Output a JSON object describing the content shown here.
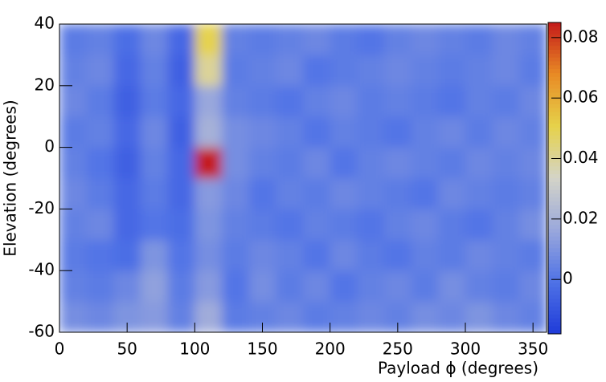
{
  "chart_data": {
    "type": "heatmap",
    "x_label": "Payload ϕ (degrees)",
    "y_label": "Elevation (degrees)",
    "xbins": [
      0,
      20,
      40,
      60,
      80,
      100,
      120,
      140,
      160,
      180,
      200,
      220,
      240,
      260,
      280,
      300,
      320,
      340,
      360
    ],
    "ybins": [
      -60,
      -50,
      -40,
      -30,
      -20,
      -10,
      0,
      10,
      20,
      30,
      40
    ],
    "z": [
      [
        0.008,
        0.006,
        0.01,
        0.012,
        0.004,
        0.018,
        0.002,
        0.004,
        0.006,
        0.002,
        0.004,
        0.006,
        0.004,
        0.008,
        0.006,
        0.01,
        0.006,
        0.004
      ],
      [
        0.004,
        0.002,
        0.006,
        0.014,
        0.002,
        0.012,
        0.0,
        0.008,
        0.002,
        0.006,
        0.0,
        0.004,
        0.006,
        0.002,
        0.008,
        0.004,
        0.002,
        0.006
      ],
      [
        0.002,
        0.0,
        -0.002,
        0.01,
        0.0,
        0.008,
        0.002,
        0.006,
        0.004,
        0.0,
        0.006,
        0.002,
        0.0,
        0.004,
        0.002,
        0.006,
        0.004,
        0.002
      ],
      [
        0.004,
        0.006,
        -0.004,
        0.0,
        -0.002,
        0.01,
        0.004,
        0.002,
        0.0,
        0.004,
        0.002,
        0.0,
        0.004,
        0.006,
        0.002,
        0.0,
        0.004,
        0.008
      ],
      [
        0.006,
        0.002,
        -0.004,
        0.002,
        -0.004,
        0.012,
        0.006,
        0.0,
        0.004,
        0.002,
        0.006,
        0.004,
        0.002,
        0.0,
        0.006,
        0.004,
        0.002,
        0.004
      ],
      [
        0.004,
        0.0,
        -0.006,
        0.004,
        -0.004,
        0.085,
        0.008,
        0.004,
        0.002,
        0.006,
        0.0,
        0.004,
        0.006,
        0.004,
        0.002,
        0.006,
        0.004,
        0.006
      ],
      [
        0.002,
        0.004,
        -0.004,
        0.006,
        -0.006,
        0.02,
        0.008,
        0.006,
        0.004,
        0.0,
        0.004,
        0.002,
        0.0,
        0.004,
        0.006,
        0.002,
        0.006,
        0.004
      ],
      [
        0.006,
        0.002,
        -0.006,
        0.002,
        -0.004,
        0.016,
        0.004,
        0.002,
        0.0,
        0.004,
        0.006,
        0.002,
        0.004,
        0.002,
        0.0,
        0.004,
        0.002,
        0.006
      ],
      [
        0.004,
        0.006,
        -0.004,
        0.004,
        -0.006,
        0.04,
        0.002,
        0.004,
        0.006,
        0.0,
        0.002,
        0.004,
        0.006,
        0.004,
        0.002,
        0.004,
        0.006,
        0.002
      ],
      [
        0.002,
        0.004,
        -0.002,
        0.006,
        -0.004,
        0.05,
        0.004,
        0.002,
        0.004,
        0.006,
        0.002,
        0.0,
        0.004,
        0.006,
        0.004,
        0.002,
        0.006,
        0.004
      ]
    ],
    "xlim": [
      0,
      360
    ],
    "xticks": [
      0,
      50,
      100,
      150,
      200,
      250,
      300,
      350
    ],
    "ylim": [
      -60,
      40
    ],
    "yticks": [
      -60,
      -40,
      -20,
      0,
      20,
      40
    ],
    "zlim": [
      -0.018,
      0.085
    ],
    "zticks": [
      0,
      0.02,
      0.04,
      0.06,
      0.08
    ],
    "colorscale": [
      "#1f3bd9",
      "#4f72e6",
      "#9aa8dc",
      "#d4d4c8",
      "#e6d24a",
      "#e88a25",
      "#c41a1a"
    ]
  }
}
